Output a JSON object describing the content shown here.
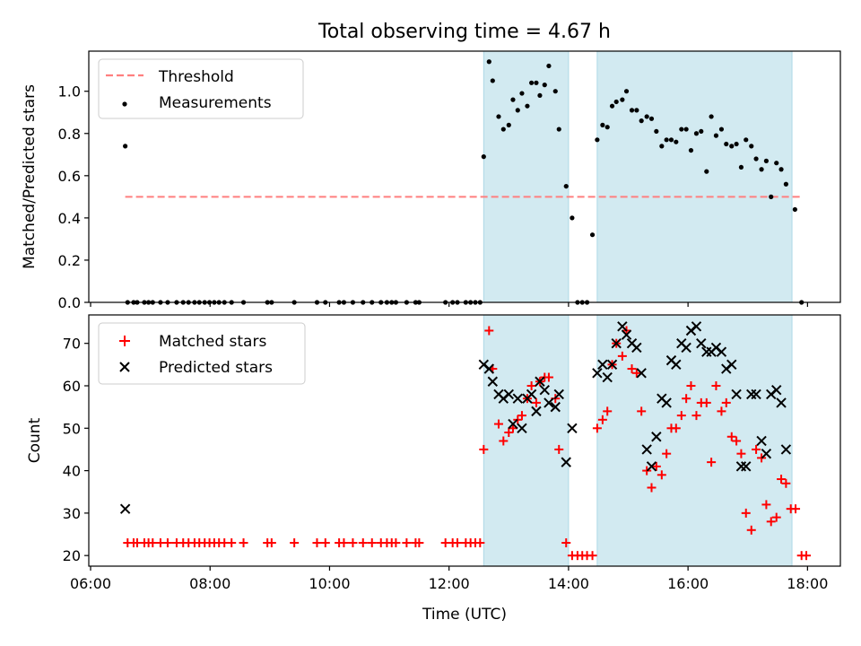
{
  "chart_data": {
    "title": "Total observing time = 4.67 h",
    "type": "scatter",
    "xlabel": "Time (UTC)",
    "xlim_hours": [
      5.97,
      18.55
    ],
    "xticks": [
      {
        "v": 6,
        "label": "06:00"
      },
      {
        "v": 8,
        "label": "08:00"
      },
      {
        "v": 10,
        "label": "10:00"
      },
      {
        "v": 12,
        "label": "12:00"
      },
      {
        "v": 14,
        "label": "14:00"
      },
      {
        "v": 16,
        "label": "16:00"
      },
      {
        "v": 18,
        "label": "18:00"
      }
    ],
    "shaded_intervals_hours": [
      [
        12.58,
        14.0
      ],
      [
        14.48,
        17.74
      ]
    ],
    "shade_color": "#add8e6",
    "top_panel": {
      "ylabel": "Matched/Predicted stars",
      "ylim": [
        0,
        1.19
      ],
      "yticks": [
        0.0,
        0.2,
        0.4,
        0.6,
        0.8,
        1.0
      ],
      "threshold": {
        "name": "Threshold",
        "value": 0.5,
        "x_range": [
          6.58,
          17.9
        ],
        "color": "#ff7f7f"
      },
      "measurements": {
        "name": "Measurements",
        "color": "#000000",
        "points": [
          [
            6.58,
            0.74
          ],
          [
            6.62,
            0
          ],
          [
            6.72,
            0
          ],
          [
            6.78,
            0
          ],
          [
            6.9,
            0
          ],
          [
            6.97,
            0
          ],
          [
            7.04,
            0
          ],
          [
            7.17,
            0
          ],
          [
            7.29,
            0
          ],
          [
            7.44,
            0
          ],
          [
            7.55,
            0
          ],
          [
            7.64,
            0
          ],
          [
            7.74,
            0
          ],
          [
            7.82,
            0
          ],
          [
            7.91,
            0
          ],
          [
            7.99,
            0
          ],
          [
            8.07,
            0
          ],
          [
            8.15,
            0
          ],
          [
            8.24,
            0
          ],
          [
            8.36,
            0
          ],
          [
            8.56,
            0
          ],
          [
            8.96,
            0
          ],
          [
            9.03,
            0
          ],
          [
            9.41,
            0
          ],
          [
            9.79,
            0
          ],
          [
            9.93,
            0
          ],
          [
            10.16,
            0
          ],
          [
            10.24,
            0
          ],
          [
            10.39,
            0
          ],
          [
            10.56,
            0
          ],
          [
            10.71,
            0
          ],
          [
            10.86,
            0
          ],
          [
            10.96,
            0
          ],
          [
            11.04,
            0
          ],
          [
            11.11,
            0
          ],
          [
            11.29,
            0
          ],
          [
            11.44,
            0
          ],
          [
            11.5,
            0
          ],
          [
            11.94,
            0
          ],
          [
            12.06,
            0
          ],
          [
            12.14,
            0
          ],
          [
            12.28,
            0
          ],
          [
            12.36,
            0
          ],
          [
            12.44,
            0
          ],
          [
            12.52,
            0
          ],
          [
            12.58,
            0.69
          ],
          [
            12.67,
            1.14
          ],
          [
            12.73,
            1.05
          ],
          [
            12.83,
            0.88
          ],
          [
            12.91,
            0.82
          ],
          [
            13.0,
            0.84
          ],
          [
            13.07,
            0.96
          ],
          [
            13.15,
            0.91
          ],
          [
            13.22,
            0.99
          ],
          [
            13.31,
            0.93
          ],
          [
            13.38,
            1.04
          ],
          [
            13.46,
            1.04
          ],
          [
            13.52,
            0.98
          ],
          [
            13.6,
            1.03
          ],
          [
            13.67,
            1.12
          ],
          [
            13.78,
            1.0
          ],
          [
            13.84,
            0.82
          ],
          [
            13.96,
            0.55
          ],
          [
            14.06,
            0.4
          ],
          [
            14.15,
            0
          ],
          [
            14.23,
            0
          ],
          [
            14.31,
            0
          ],
          [
            14.4,
            0.32
          ],
          [
            14.48,
            0.77
          ],
          [
            14.57,
            0.84
          ],
          [
            14.65,
            0.83
          ],
          [
            14.73,
            0.93
          ],
          [
            14.8,
            0.95
          ],
          [
            14.9,
            0.96
          ],
          [
            14.97,
            1.0
          ],
          [
            15.06,
            0.91
          ],
          [
            15.14,
            0.91
          ],
          [
            15.22,
            0.86
          ],
          [
            15.31,
            0.88
          ],
          [
            15.39,
            0.87
          ],
          [
            15.47,
            0.81
          ],
          [
            15.56,
            0.74
          ],
          [
            15.64,
            0.77
          ],
          [
            15.72,
            0.77
          ],
          [
            15.8,
            0.76
          ],
          [
            15.89,
            0.82
          ],
          [
            15.97,
            0.82
          ],
          [
            16.05,
            0.72
          ],
          [
            16.14,
            0.8
          ],
          [
            16.22,
            0.81
          ],
          [
            16.31,
            0.62
          ],
          [
            16.39,
            0.88
          ],
          [
            16.47,
            0.79
          ],
          [
            16.56,
            0.82
          ],
          [
            16.64,
            0.75
          ],
          [
            16.73,
            0.74
          ],
          [
            16.81,
            0.75
          ],
          [
            16.89,
            0.64
          ],
          [
            16.97,
            0.77
          ],
          [
            17.06,
            0.74
          ],
          [
            17.14,
            0.68
          ],
          [
            17.23,
            0.63
          ],
          [
            17.31,
            0.67
          ],
          [
            17.39,
            0.5
          ],
          [
            17.48,
            0.66
          ],
          [
            17.56,
            0.63
          ],
          [
            17.64,
            0.56
          ],
          [
            17.79,
            0.44
          ],
          [
            17.9,
            0
          ]
        ]
      }
    },
    "bottom_panel": {
      "ylabel": "Count",
      "ylim": [
        17.5,
        76.7
      ],
      "yticks": [
        20,
        30,
        40,
        50,
        60,
        70
      ],
      "series": [
        {
          "name": "Matched stars",
          "marker": "plus",
          "color": "#ff0000",
          "points": [
            [
              6.62,
              23
            ],
            [
              6.72,
              23
            ],
            [
              6.78,
              23
            ],
            [
              6.9,
              23
            ],
            [
              6.97,
              23
            ],
            [
              7.04,
              23
            ],
            [
              7.17,
              23
            ],
            [
              7.29,
              23
            ],
            [
              7.44,
              23
            ],
            [
              7.55,
              23
            ],
            [
              7.64,
              23
            ],
            [
              7.74,
              23
            ],
            [
              7.82,
              23
            ],
            [
              7.91,
              23
            ],
            [
              7.99,
              23
            ],
            [
              8.07,
              23
            ],
            [
              8.15,
              23
            ],
            [
              8.24,
              23
            ],
            [
              8.36,
              23
            ],
            [
              8.56,
              23
            ],
            [
              8.96,
              23
            ],
            [
              9.03,
              23
            ],
            [
              9.41,
              23
            ],
            [
              9.79,
              23
            ],
            [
              9.93,
              23
            ],
            [
              10.16,
              23
            ],
            [
              10.24,
              23
            ],
            [
              10.39,
              23
            ],
            [
              10.56,
              23
            ],
            [
              10.71,
              23
            ],
            [
              10.86,
              23
            ],
            [
              10.96,
              23
            ],
            [
              11.04,
              23
            ],
            [
              11.11,
              23
            ],
            [
              11.29,
              23
            ],
            [
              11.44,
              23
            ],
            [
              11.5,
              23
            ],
            [
              11.94,
              23
            ],
            [
              12.06,
              23
            ],
            [
              12.14,
              23
            ],
            [
              12.28,
              23
            ],
            [
              12.36,
              23
            ],
            [
              12.44,
              23
            ],
            [
              12.52,
              23
            ],
            [
              12.58,
              45
            ],
            [
              12.67,
              73
            ],
            [
              12.73,
              64
            ],
            [
              12.83,
              51
            ],
            [
              12.91,
              47
            ],
            [
              13.0,
              49
            ],
            [
              13.07,
              50
            ],
            [
              13.15,
              52
            ],
            [
              13.22,
              53
            ],
            [
              13.31,
              57
            ],
            [
              13.38,
              60
            ],
            [
              13.46,
              56
            ],
            [
              13.52,
              61
            ],
            [
              13.6,
              62
            ],
            [
              13.67,
              62
            ],
            [
              13.78,
              57
            ],
            [
              13.84,
              45
            ],
            [
              13.96,
              23
            ],
            [
              14.06,
              20
            ],
            [
              14.15,
              20
            ],
            [
              14.23,
              20
            ],
            [
              14.31,
              20
            ],
            [
              14.4,
              20
            ],
            [
              14.48,
              50
            ],
            [
              14.57,
              52
            ],
            [
              14.65,
              54
            ],
            [
              14.73,
              65
            ],
            [
              14.8,
              70
            ],
            [
              14.9,
              67
            ],
            [
              14.97,
              73
            ],
            [
              15.06,
              64
            ],
            [
              15.14,
              63
            ],
            [
              15.22,
              54
            ],
            [
              15.31,
              40
            ],
            [
              15.39,
              36
            ],
            [
              15.47,
              41
            ],
            [
              15.56,
              39
            ],
            [
              15.64,
              44
            ],
            [
              15.72,
              50
            ],
            [
              15.8,
              50
            ],
            [
              15.89,
              53
            ],
            [
              15.97,
              57
            ],
            [
              16.05,
              60
            ],
            [
              16.14,
              53
            ],
            [
              16.22,
              56
            ],
            [
              16.31,
              56
            ],
            [
              16.39,
              42
            ],
            [
              16.47,
              60
            ],
            [
              16.56,
              54
            ],
            [
              16.64,
              56
            ],
            [
              16.73,
              48
            ],
            [
              16.81,
              47
            ],
            [
              16.89,
              44
            ],
            [
              16.97,
              30
            ],
            [
              17.06,
              26
            ],
            [
              17.14,
              45
            ],
            [
              17.23,
              43
            ],
            [
              17.31,
              32
            ],
            [
              17.39,
              28
            ],
            [
              17.48,
              29
            ],
            [
              17.56,
              38
            ],
            [
              17.64,
              37
            ],
            [
              17.72,
              31
            ],
            [
              17.8,
              31
            ],
            [
              17.9,
              20
            ],
            [
              17.98,
              20
            ]
          ]
        },
        {
          "name": "Predicted stars",
          "marker": "x",
          "color": "#000000",
          "points": [
            [
              6.58,
              31
            ],
            [
              12.58,
              65
            ],
            [
              12.67,
              64
            ],
            [
              12.73,
              61
            ],
            [
              12.83,
              58
            ],
            [
              12.91,
              57
            ],
            [
              13.0,
              58
            ],
            [
              13.07,
              51
            ],
            [
              13.15,
              57
            ],
            [
              13.22,
              50
            ],
            [
              13.31,
              57
            ],
            [
              13.38,
              58
            ],
            [
              13.46,
              54
            ],
            [
              13.52,
              61
            ],
            [
              13.6,
              59
            ],
            [
              13.67,
              56
            ],
            [
              13.78,
              55
            ],
            [
              13.84,
              58
            ],
            [
              13.96,
              42
            ],
            [
              14.06,
              50
            ],
            [
              14.48,
              63
            ],
            [
              14.57,
              65
            ],
            [
              14.65,
              62
            ],
            [
              14.73,
              65
            ],
            [
              14.8,
              70
            ],
            [
              14.9,
              74
            ],
            [
              14.97,
              72
            ],
            [
              15.06,
              70
            ],
            [
              15.14,
              69
            ],
            [
              15.22,
              63
            ],
            [
              15.31,
              45
            ],
            [
              15.39,
              41
            ],
            [
              15.47,
              48
            ],
            [
              15.56,
              57
            ],
            [
              15.64,
              56
            ],
            [
              15.72,
              66
            ],
            [
              15.8,
              65
            ],
            [
              15.89,
              70
            ],
            [
              15.97,
              69
            ],
            [
              16.05,
              73
            ],
            [
              16.14,
              74
            ],
            [
              16.22,
              70
            ],
            [
              16.31,
              68
            ],
            [
              16.39,
              68
            ],
            [
              16.47,
              69
            ],
            [
              16.56,
              68
            ],
            [
              16.64,
              64
            ],
            [
              16.73,
              65
            ],
            [
              16.81,
              58
            ],
            [
              16.89,
              41
            ],
            [
              16.97,
              41
            ],
            [
              17.06,
              58
            ],
            [
              17.14,
              58
            ],
            [
              17.23,
              47
            ],
            [
              17.31,
              44
            ],
            [
              17.39,
              58
            ],
            [
              17.48,
              59
            ],
            [
              17.56,
              56
            ],
            [
              17.64,
              45
            ]
          ]
        }
      ]
    }
  }
}
